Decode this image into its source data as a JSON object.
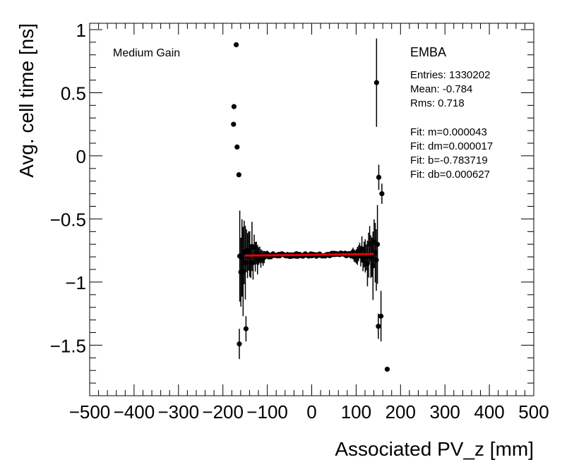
{
  "chart_data": {
    "type": "scatter",
    "title": "",
    "xlabel": "Associated PV_z [mm]",
    "ylabel": "Avg. cell time [ns]",
    "xlim": [
      -500,
      500
    ],
    "ylim": [
      -1.9,
      1.05
    ],
    "x_ticks": [
      -500,
      -400,
      -300,
      -200,
      -100,
      0,
      100,
      200,
      300,
      400,
      500
    ],
    "x_tick_labels": [
      "−500",
      "−400",
      "−300",
      "−200",
      "−100",
      "0",
      "100",
      "200",
      "300",
      "400",
      "500"
    ],
    "y_ticks": [
      1,
      0.5,
      0,
      -0.5,
      -1,
      -1.5
    ],
    "y_tick_labels": [
      "1",
      "0.5",
      "0",
      "−0.5",
      "−1",
      "−1.5"
    ],
    "annotations": {
      "gain_label": "Medium Gain",
      "partition": "EMBA",
      "entries": "Entries: 1330202",
      "mean": "Mean: -0.784",
      "rms": "Rms: 0.718",
      "fit_m": "Fit: m=0.000043",
      "fit_dm": "Fit: dm=0.000017",
      "fit_b": "Fit: b=-0.783719",
      "fit_db": "Fit: db=0.000627"
    },
    "outliers": [
      {
        "x": -170,
        "y": 0.88,
        "err": 0
      },
      {
        "x": -175,
        "y": 0.39,
        "err": 0
      },
      {
        "x": -176,
        "y": 0.25,
        "err": 0
      },
      {
        "x": -168,
        "y": 0.07,
        "err": 0
      },
      {
        "x": -164,
        "y": -0.15,
        "err": 0
      },
      {
        "x": -163,
        "y": -1.49,
        "err": 0.12
      },
      {
        "x": -148,
        "y": -1.37,
        "err": 0.1
      },
      {
        "x": 146,
        "y": 0.58,
        "err": 0.35
      },
      {
        "x": 151,
        "y": -0.17,
        "err": 0.1
      },
      {
        "x": 158,
        "y": -0.3,
        "err": 0.08
      },
      {
        "x": 150,
        "y": -1.35,
        "err": 0.1
      },
      {
        "x": 156,
        "y": -1.27,
        "err": 0.2
      },
      {
        "x": 170,
        "y": -1.69,
        "err": 0
      }
    ],
    "fit_line": {
      "slope": 4.3e-05,
      "intercept": -0.783719,
      "x_range": [
        -150,
        140
      ],
      "color": "#e8000b"
    },
    "marker_color": "#000000"
  }
}
